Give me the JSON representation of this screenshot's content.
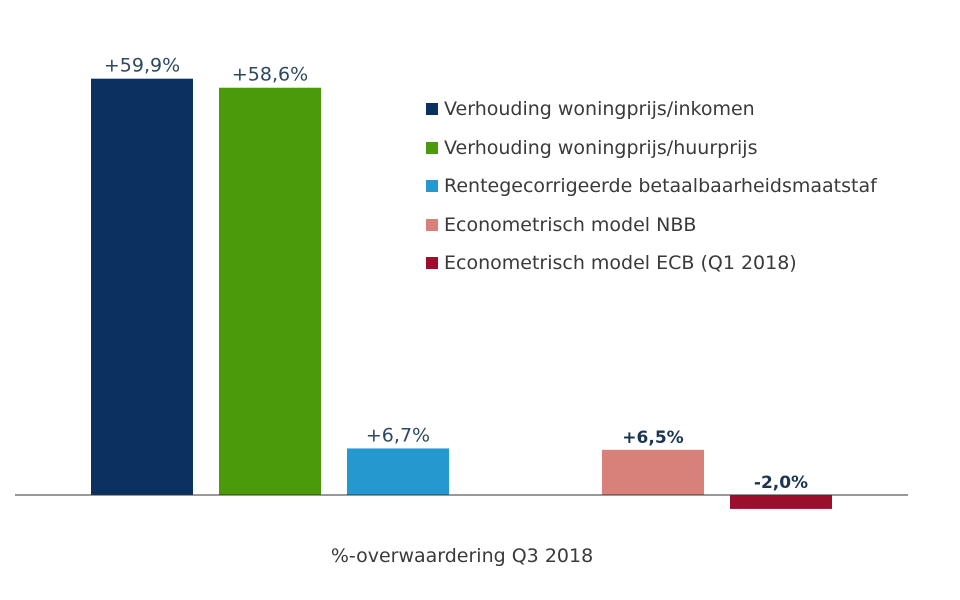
{
  "chart_data": {
    "type": "bar",
    "xlabel": "%-overwaardering Q3 2018",
    "ylim": [
      -2.5,
      62
    ],
    "grid": false,
    "legend_position": "top-right",
    "categories": [
      "Verhouding woningprijs/inkomen",
      "Verhouding woningprijs/huurprijs",
      "Rentegecorrigeerde betaalbaarheidsmaatstaf",
      "Econometrisch model NBB",
      "Econometrisch model ECB (Q1 2018)"
    ],
    "values": [
      59.9,
      58.6,
      6.7,
      6.5,
      -2.0
    ],
    "data_labels": [
      "+59,9%",
      "+58,6%",
      "+6,7%",
      "+6,5%",
      "-2,0%"
    ],
    "colors": [
      "#0b3160",
      "#4a9a0a",
      "#2698d0",
      "#d8817a",
      "#9c0f2c"
    ],
    "label_colors": [
      "#2f4860",
      "#2f4860",
      "#2f4860",
      "#1c3550",
      "#1c3550"
    ]
  }
}
